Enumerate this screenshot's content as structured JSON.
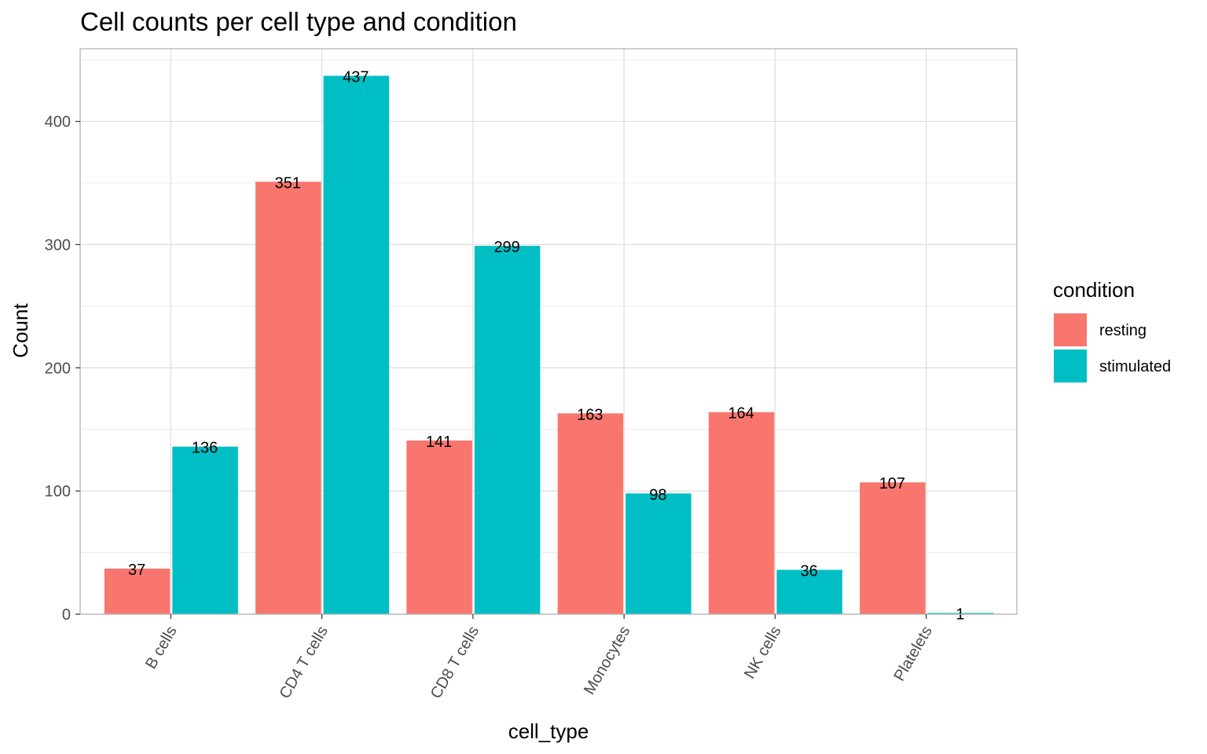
{
  "chart_data": {
    "type": "bar",
    "title": "Cell counts per cell type and condition",
    "xlabel": "cell_type",
    "ylabel": "Count",
    "categories": [
      "B cells",
      "CD4 T cells",
      "CD8 T cells",
      "Monocytes",
      "NK cells",
      "Platelets"
    ],
    "series": [
      {
        "name": "resting",
        "color": "#F8766D",
        "values": [
          37,
          351,
          141,
          163,
          164,
          107
        ]
      },
      {
        "name": "stimulated",
        "color": "#00BFC4",
        "values": [
          136,
          437,
          299,
          98,
          36,
          1
        ]
      }
    ],
    "ylim": [
      0,
      459
    ],
    "yticks": [
      0,
      100,
      200,
      300,
      400
    ],
    "grid": true,
    "legend": {
      "title": "condition",
      "placement": "right"
    },
    "colors": {
      "resting": "#F8766D",
      "stimulated": "#00BFC4"
    }
  }
}
